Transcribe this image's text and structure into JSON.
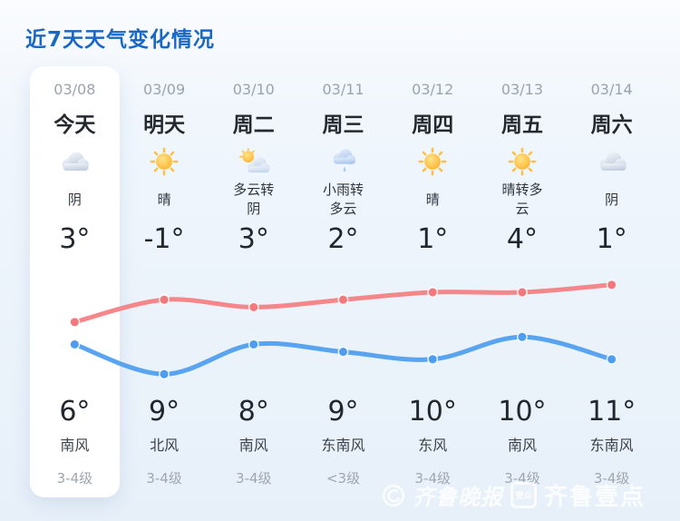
{
  "title": "近7天天气变化情况",
  "colors": {
    "title_blue": "#1a68c6",
    "card_bg": "#ffffff",
    "page_bg_top": "#fafcff",
    "page_bg_bottom": "#e7f0f9",
    "high_line_red": "#f5878b",
    "low_line_blue": "#58a4f0"
  },
  "columns": [
    {
      "date": "03/08",
      "day": "今天",
      "icon": "overcast-icon",
      "desc": "阴",
      "temp_low": "3°",
      "temp_high": "6°",
      "wind": "南风",
      "level": "3-4级",
      "highlighted": true
    },
    {
      "date": "03/09",
      "day": "明天",
      "icon": "sunny-icon",
      "desc": "晴",
      "temp_low": "-1°",
      "temp_high": "9°",
      "wind": "北风",
      "level": "3-4级",
      "highlighted": false
    },
    {
      "date": "03/10",
      "day": "周二",
      "icon": "partly-cloudy-icon",
      "desc": "多云转\n阴",
      "temp_low": "3°",
      "temp_high": "8°",
      "wind": "南风",
      "level": "3-4级",
      "highlighted": false
    },
    {
      "date": "03/11",
      "day": "周三",
      "icon": "light-rain-icon",
      "desc": "小雨转\n多云",
      "temp_low": "2°",
      "temp_high": "9°",
      "wind": "东南风",
      "level": "<3级",
      "highlighted": false
    },
    {
      "date": "03/12",
      "day": "周四",
      "icon": "sunny-icon",
      "desc": "晴",
      "temp_low": "1°",
      "temp_high": "10°",
      "wind": "东风",
      "level": "3-4级",
      "highlighted": false
    },
    {
      "date": "03/13",
      "day": "周五",
      "icon": "sunny-icon",
      "desc": "晴转多\n云",
      "temp_low": "4°",
      "temp_high": "10°",
      "wind": "南风",
      "level": "3-4级",
      "highlighted": false
    },
    {
      "date": "03/14",
      "day": "周六",
      "icon": "overcast-icon",
      "desc": "阴",
      "temp_low": "1°",
      "temp_high": "11°",
      "wind": "东南风",
      "level": "3-4级",
      "highlighted": false
    }
  ],
  "chart_data": {
    "type": "line",
    "x": [
      "03/08",
      "03/09",
      "03/10",
      "03/11",
      "03/12",
      "03/13",
      "03/14"
    ],
    "series": [
      {
        "name": "high",
        "color": "#f5878b",
        "dot_color": "#f3787d",
        "values": [
          6,
          9,
          8,
          9,
          10,
          10,
          11
        ]
      },
      {
        "name": "low",
        "color": "#58a4f0",
        "dot_color": "#4d9cee",
        "values": [
          3,
          -1,
          3,
          2,
          1,
          4,
          1
        ]
      }
    ],
    "unit": "°C",
    "ylim": [
      -2,
      12
    ],
    "grid": false,
    "legend": false
  },
  "watermark": {
    "brand1": "齐鲁晚报",
    "badge": "壹点",
    "brand2": "齐鲁壹点"
  }
}
